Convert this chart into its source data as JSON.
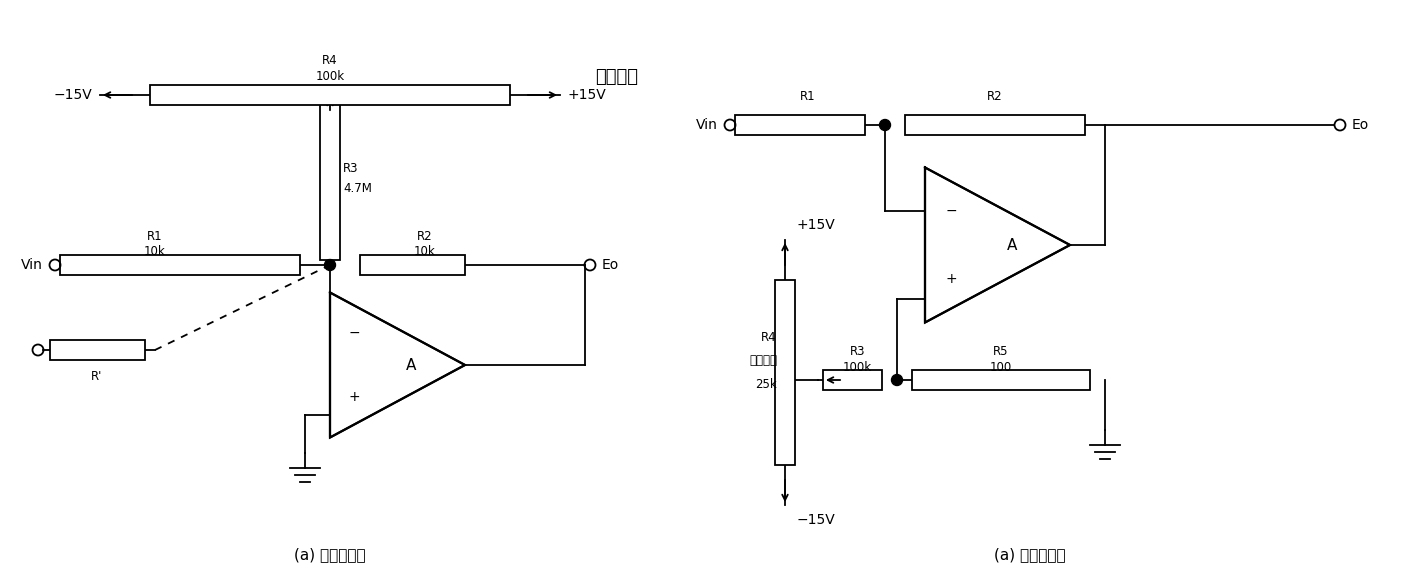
{
  "title_left": "(a) 反相端调零",
  "title_right": "(a) 同相端调零",
  "label_shidiao": "失调调整",
  "background": "#ffffff",
  "line_color": "#000000",
  "font_size_label": 10,
  "font_size_small": 8.5,
  "font_size_title": 11,
  "font_size_chinese": 13
}
